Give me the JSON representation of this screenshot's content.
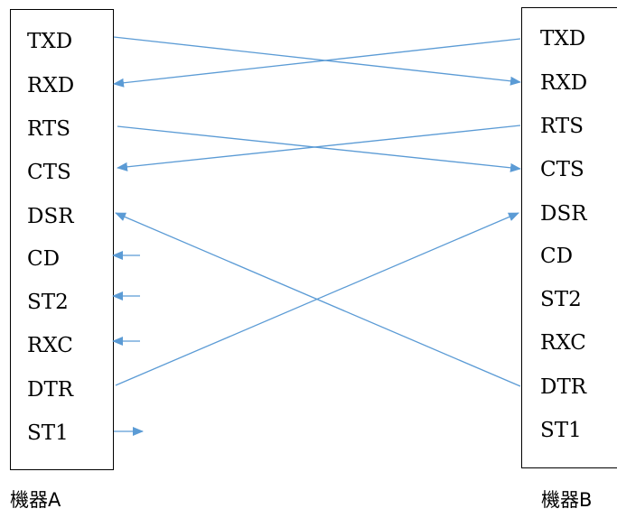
{
  "device_a": {
    "label": "機器A",
    "signals": [
      "TXD",
      "RXD",
      "RTS",
      "CTS",
      "DSR",
      "CD",
      "ST2",
      "RXC",
      "DTR",
      "ST1"
    ]
  },
  "device_b": {
    "label": "機器B",
    "signals": [
      "TXD",
      "RXD",
      "RTS",
      "CTS",
      "DSR",
      "CD",
      "ST2",
      "RXC",
      "DTR",
      "ST1"
    ]
  },
  "line_color": "#5b9bd5",
  "connections": [
    {
      "from": "A.TXD",
      "to": "B.RXD"
    },
    {
      "from": "B.TXD",
      "to": "A.RXD"
    },
    {
      "from": "A.RTS",
      "to": "B.CTS"
    },
    {
      "from": "B.RTS",
      "to": "A.CTS"
    },
    {
      "from": "B.DTR",
      "to": "A.DSR"
    },
    {
      "from": "A.DTR",
      "to": "B.DSR"
    }
  ],
  "stubs": [
    {
      "signal": "A.CD",
      "direction": "in"
    },
    {
      "signal": "A.ST2",
      "direction": "in"
    },
    {
      "signal": "A.RXC",
      "direction": "in"
    },
    {
      "signal": "A.ST1",
      "direction": "out"
    }
  ]
}
